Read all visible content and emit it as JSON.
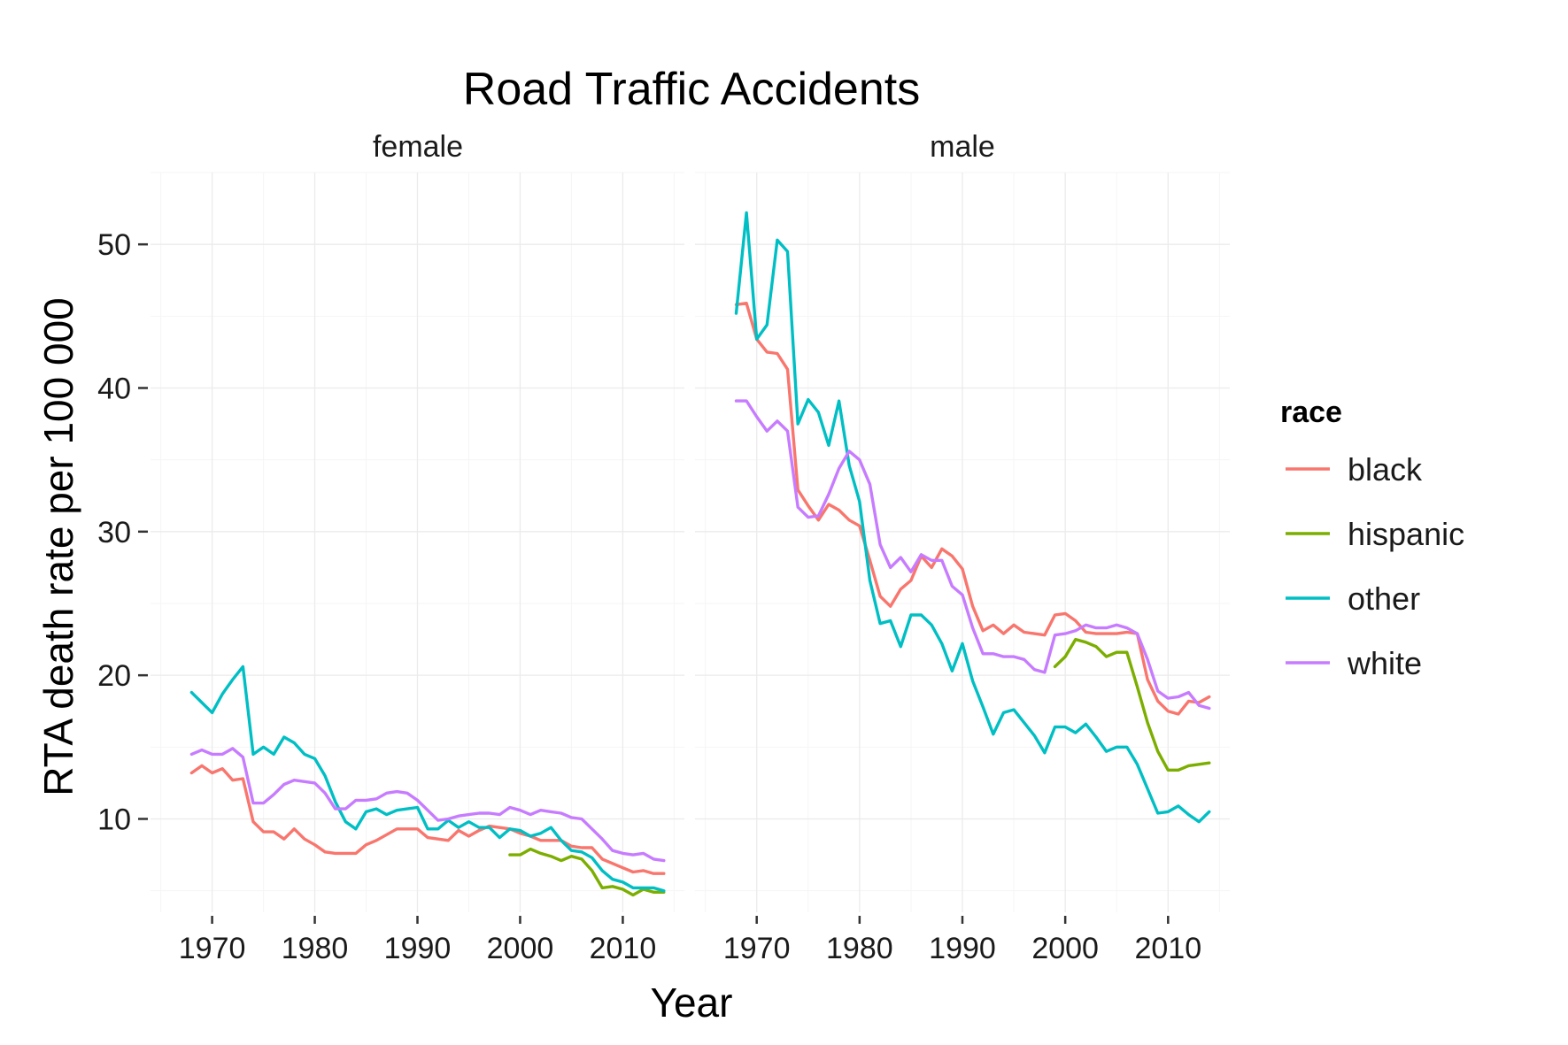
{
  "chart_data": {
    "type": "line",
    "title": "Road Traffic Accidents",
    "xlabel": "Year",
    "ylabel": "RTA death rate per 100 000",
    "xlim": [
      1964,
      2016
    ],
    "ylim": [
      3.5,
      55
    ],
    "x_ticks": [
      1970,
      1980,
      1990,
      2000,
      2010
    ],
    "y_ticks": [
      10,
      20,
      30,
      40,
      50
    ],
    "grid": true,
    "legend": {
      "title": "race",
      "position": "right"
    },
    "colors": {
      "black": "#F8766D",
      "hispanic": "#7CAE00",
      "other": "#00BFC4",
      "white": "#C77CFF"
    },
    "panels": [
      {
        "name": "female",
        "series": [
          {
            "name": "black",
            "x": [
              1968,
              1969,
              1970,
              1971,
              1972,
              1973,
              1974,
              1975,
              1976,
              1977,
              1978,
              1979,
              1980,
              1981,
              1982,
              1983,
              1984,
              1985,
              1986,
              1987,
              1988,
              1989,
              1990,
              1991,
              1992,
              1993,
              1994,
              1995,
              1996,
              1997,
              1998,
              1999,
              2000,
              2001,
              2002,
              2003,
              2004,
              2005,
              2006,
              2007,
              2008,
              2009,
              2010,
              2011,
              2012,
              2013,
              2014
            ],
            "y": [
              13.2,
              13.7,
              13.2,
              13.5,
              12.7,
              12.8,
              9.8,
              9.1,
              9.1,
              8.6,
              9.3,
              8.6,
              8.2,
              7.7,
              7.6,
              7.6,
              7.6,
              8.2,
              8.5,
              8.9,
              9.3,
              9.3,
              9.3,
              8.7,
              8.6,
              8.5,
              9.2,
              8.8,
              9.2,
              9.5,
              9.4,
              9.3,
              9.0,
              8.8,
              8.5,
              8.5,
              8.5,
              8.1,
              8.0,
              8.0,
              7.2,
              6.9,
              6.6,
              6.3,
              6.4,
              6.2,
              6.2
            ]
          },
          {
            "name": "hispanic",
            "x": [
              1999,
              2000,
              2001,
              2002,
              2003,
              2004,
              2005,
              2006,
              2007,
              2008,
              2009,
              2010,
              2011,
              2012,
              2013,
              2014
            ],
            "y": [
              7.5,
              7.5,
              7.9,
              7.6,
              7.4,
              7.1,
              7.4,
              7.2,
              6.4,
              5.2,
              5.3,
              5.1,
              4.7,
              5.1,
              4.9,
              4.9
            ]
          },
          {
            "name": "other",
            "x": [
              1968,
              1969,
              1970,
              1971,
              1972,
              1973,
              1974,
              1975,
              1976,
              1977,
              1978,
              1979,
              1980,
              1981,
              1982,
              1983,
              1984,
              1985,
              1986,
              1987,
              1988,
              1989,
              1990,
              1991,
              1992,
              1993,
              1994,
              1995,
              1996,
              1997,
              1998,
              1999,
              2000,
              2001,
              2002,
              2003,
              2004,
              2005,
              2006,
              2007,
              2008,
              2009,
              2010,
              2011,
              2012,
              2013,
              2014
            ],
            "y": [
              18.8,
              18.1,
              17.4,
              18.7,
              19.7,
              20.6,
              14.5,
              15.0,
              14.5,
              15.7,
              15.3,
              14.5,
              14.2,
              13.0,
              11.2,
              9.8,
              9.3,
              10.5,
              10.7,
              10.3,
              10.6,
              10.7,
              10.8,
              9.3,
              9.3,
              9.9,
              9.4,
              9.8,
              9.4,
              9.4,
              8.7,
              9.3,
              9.2,
              8.8,
              9.0,
              9.4,
              8.5,
              7.8,
              7.7,
              7.3,
              6.4,
              5.8,
              5.6,
              5.2,
              5.2,
              5.2,
              5.0
            ]
          },
          {
            "name": "white",
            "x": [
              1968,
              1969,
              1970,
              1971,
              1972,
              1973,
              1974,
              1975,
              1976,
              1977,
              1978,
              1979,
              1980,
              1981,
              1982,
              1983,
              1984,
              1985,
              1986,
              1987,
              1988,
              1989,
              1990,
              1991,
              1992,
              1993,
              1994,
              1995,
              1996,
              1997,
              1998,
              1999,
              2000,
              2001,
              2002,
              2003,
              2004,
              2005,
              2006,
              2007,
              2008,
              2009,
              2010,
              2011,
              2012,
              2013,
              2014
            ],
            "y": [
              14.5,
              14.8,
              14.5,
              14.5,
              14.9,
              14.3,
              11.1,
              11.1,
              11.7,
              12.4,
              12.7,
              12.6,
              12.5,
              11.8,
              10.7,
              10.7,
              11.3,
              11.3,
              11.4,
              11.8,
              11.9,
              11.8,
              11.3,
              10.6,
              9.9,
              10.0,
              10.2,
              10.3,
              10.4,
              10.4,
              10.3,
              10.8,
              10.6,
              10.3,
              10.6,
              10.5,
              10.4,
              10.1,
              10.0,
              9.3,
              8.6,
              7.8,
              7.6,
              7.5,
              7.6,
              7.2,
              7.1
            ]
          }
        ]
      },
      {
        "name": "male",
        "series": [
          {
            "name": "black",
            "x": [
              1968,
              1969,
              1970,
              1971,
              1972,
              1973,
              1974,
              1975,
              1976,
              1977,
              1978,
              1979,
              1980,
              1981,
              1982,
              1983,
              1984,
              1985,
              1986,
              1987,
              1988,
              1989,
              1990,
              1991,
              1992,
              1993,
              1994,
              1995,
              1996,
              1997,
              1998,
              1999,
              2000,
              2001,
              2002,
              2003,
              2004,
              2005,
              2006,
              2007,
              2008,
              2009,
              2010,
              2011,
              2012,
              2013,
              2014
            ],
            "y": [
              45.8,
              45.9,
              43.4,
              42.5,
              42.4,
              41.3,
              32.9,
              31.8,
              30.8,
              31.9,
              31.5,
              30.8,
              30.4,
              28.0,
              25.5,
              24.8,
              26.0,
              26.6,
              28.3,
              27.5,
              28.8,
              28.3,
              27.4,
              24.8,
              23.1,
              23.5,
              22.9,
              23.5,
              23.0,
              22.9,
              22.8,
              24.2,
              24.3,
              23.8,
              23.0,
              22.9,
              22.9,
              22.9,
              23.0,
              22.9,
              19.7,
              18.2,
              17.5,
              17.3,
              18.2,
              18.1,
              18.5
            ]
          },
          {
            "name": "hispanic",
            "x": [
              1999,
              2000,
              2001,
              2002,
              2003,
              2004,
              2005,
              2006,
              2007,
              2008,
              2009,
              2010,
              2011,
              2012,
              2013,
              2014
            ],
            "y": [
              20.6,
              21.3,
              22.5,
              22.3,
              22.0,
              21.3,
              21.6,
              21.6,
              19.2,
              16.7,
              14.7,
              13.4,
              13.4,
              13.7,
              13.8,
              13.9
            ]
          },
          {
            "name": "other",
            "x": [
              1968,
              1969,
              1970,
              1971,
              1972,
              1973,
              1974,
              1975,
              1976,
              1977,
              1978,
              1979,
              1980,
              1981,
              1982,
              1983,
              1984,
              1985,
              1986,
              1987,
              1988,
              1989,
              1990,
              1991,
              1992,
              1993,
              1994,
              1995,
              1996,
              1997,
              1998,
              1999,
              2000,
              2001,
              2002,
              2003,
              2004,
              2005,
              2006,
              2007,
              2008,
              2009,
              2010,
              2011,
              2012,
              2013,
              2014
            ],
            "y": [
              45.2,
              52.2,
              43.4,
              44.4,
              50.3,
              49.5,
              37.5,
              39.2,
              38.3,
              36.0,
              39.1,
              34.6,
              32.1,
              26.6,
              23.6,
              23.8,
              22.0,
              24.2,
              24.2,
              23.5,
              22.2,
              20.3,
              22.2,
              19.6,
              17.8,
              15.9,
              17.4,
              17.6,
              16.7,
              15.8,
              14.6,
              16.4,
              16.4,
              16.0,
              16.6,
              15.7,
              14.7,
              15.0,
              15.0,
              13.8,
              12.1,
              10.4,
              10.5,
              10.9,
              10.3,
              9.8,
              10.5
            ]
          },
          {
            "name": "white",
            "x": [
              1968,
              1969,
              1970,
              1971,
              1972,
              1973,
              1974,
              1975,
              1976,
              1977,
              1978,
              1979,
              1980,
              1981,
              1982,
              1983,
              1984,
              1985,
              1986,
              1987,
              1988,
              1989,
              1990,
              1991,
              1992,
              1993,
              1994,
              1995,
              1996,
              1997,
              1998,
              1999,
              2000,
              2001,
              2002,
              2003,
              2004,
              2005,
              2006,
              2007,
              2008,
              2009,
              2010,
              2011,
              2012,
              2013,
              2014
            ],
            "y": [
              39.1,
              39.1,
              38.0,
              37.0,
              37.7,
              37.0,
              31.7,
              31.0,
              31.1,
              32.6,
              34.4,
              35.6,
              35.0,
              33.3,
              29.1,
              27.5,
              28.2,
              27.2,
              28.4,
              28.0,
              28.0,
              26.2,
              25.6,
              23.3,
              21.5,
              21.5,
              21.3,
              21.3,
              21.1,
              20.4,
              20.2,
              22.8,
              22.9,
              23.1,
              23.5,
              23.3,
              23.3,
              23.5,
              23.3,
              22.9,
              21.1,
              18.9,
              18.4,
              18.5,
              18.8,
              17.9,
              17.7
            ]
          }
        ]
      }
    ]
  }
}
